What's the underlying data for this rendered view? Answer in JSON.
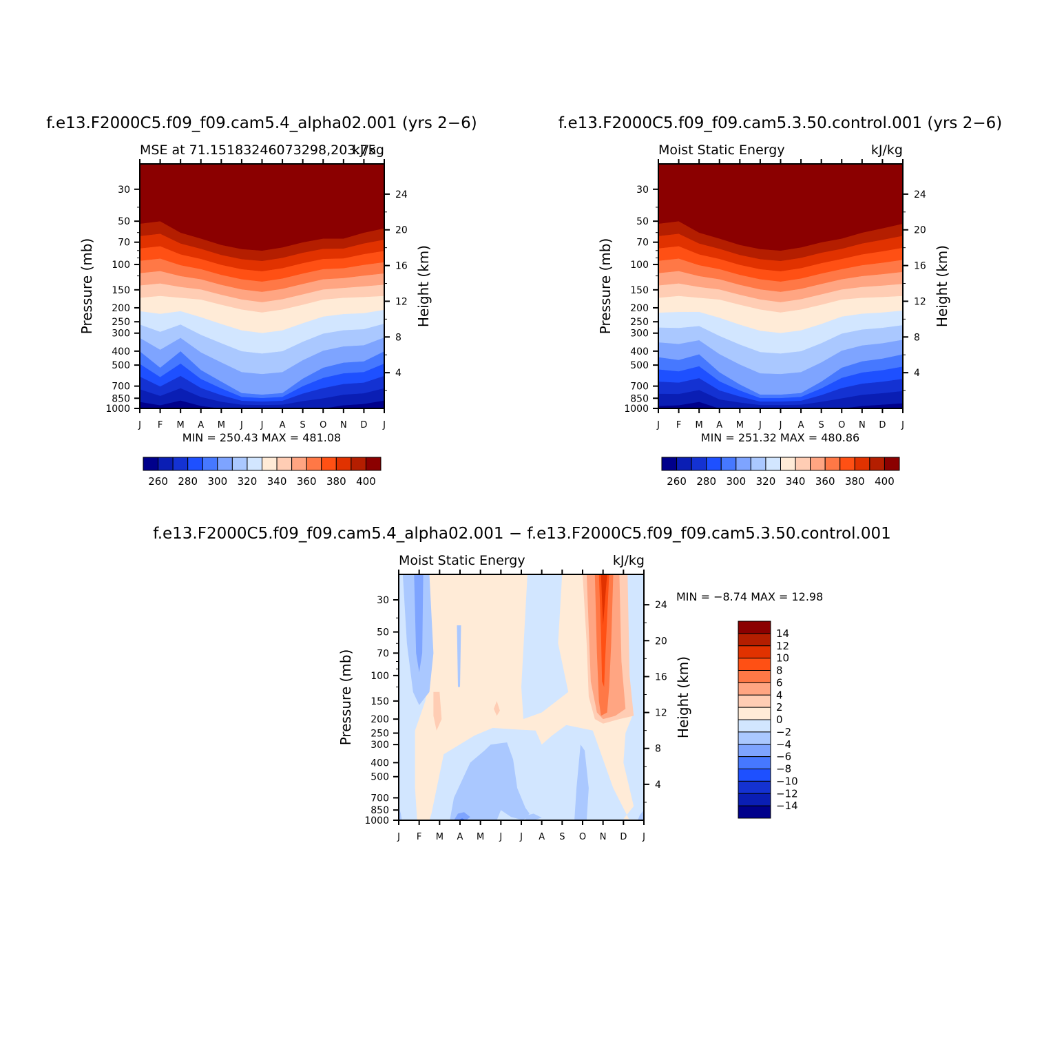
{
  "months": [
    "J",
    "F",
    "M",
    "A",
    "M",
    "J",
    "J",
    "A",
    "S",
    "O",
    "N",
    "D",
    "J"
  ],
  "pressure_ticks": [
    "30",
    "50",
    "70",
    "100",
    "150",
    "200",
    "250",
    "300",
    "400",
    "500",
    "700",
    "850",
    "1000"
  ],
  "height_ticks": [
    "24",
    "20",
    "16",
    "12",
    "8",
    "4"
  ],
  "y_label_left": "Pressure (mb)",
  "y_label_right": "Height (km)",
  "panel1": {
    "title": "f.e13.F2000C5.f09_f09.cam5.4_alpha02.001 (yrs 2−6)",
    "subtitle_left": "MSE at 71.15183246073298,203.75",
    "subtitle_right": "kJ/kg",
    "minmax": "MIN = 250.43  MAX = 481.08"
  },
  "panel2": {
    "title": "f.e13.F2000C5.f09_f09.cam5.3.50.control.001 (yrs 2−6)",
    "subtitle_left": "Moist Static Energy",
    "subtitle_right": "kJ/kg",
    "minmax": "MIN = 251.32  MAX = 480.86"
  },
  "panel3": {
    "title": "f.e13.F2000C5.f09_f09.cam5.4_alpha02.001 − f.e13.F2000C5.f09_f09.cam5.3.50.control.001",
    "subtitle_left": "Moist Static Energy",
    "subtitle_right": "kJ/kg",
    "minmax": "MIN =   −8.74  MAX =    12.98"
  },
  "colorbar_main": {
    "labels": [
      "260",
      "280",
      "300",
      "320",
      "340",
      "360",
      "380",
      "400"
    ],
    "colors": [
      "#00008b",
      "#0a1eb4",
      "#1432d2",
      "#1e50ff",
      "#4678ff",
      "#7ea4ff",
      "#aac8ff",
      "#d2e6ff",
      "#ffebd7",
      "#ffcdb4",
      "#ffa582",
      "#ff7846",
      "#ff5014",
      "#e13200",
      "#b41e00",
      "#8b0000"
    ]
  },
  "colorbar_diff": {
    "labels": [
      "14",
      "12",
      "10",
      "8",
      "6",
      "4",
      "2",
      "0",
      "−2",
      "−4",
      "−6",
      "−8",
      "−10",
      "−12",
      "−14"
    ],
    "colors_top_to_bottom": [
      "#8b0000",
      "#b41e00",
      "#e13200",
      "#ff5014",
      "#ff7846",
      "#ffa582",
      "#ffcdb4",
      "#ffebd7",
      "#d2e6ff",
      "#aac8ff",
      "#7ea4ff",
      "#4678ff",
      "#1e50ff",
      "#1432d2",
      "#0a1eb4",
      "#00008b"
    ]
  },
  "chart_data": [
    {
      "type": "heatmap",
      "title": "f.e13.F2000C5.f09_f09.cam5.4_alpha02.001 (yrs 2−6)",
      "subtitle": "MSE at 71.15183246073298,203.75",
      "units": "kJ/kg",
      "x": [
        "J",
        "F",
        "M",
        "A",
        "M",
        "J",
        "J",
        "A",
        "S",
        "O",
        "N",
        "D",
        "J"
      ],
      "y_pressure_mb": [
        1000,
        850,
        700,
        500,
        400,
        300,
        250,
        200,
        150,
        100,
        70,
        50,
        30
      ],
      "min": 250.43,
      "max": 481.08,
      "contour_levels": [
        255,
        260,
        265,
        270,
        275,
        280,
        285,
        290,
        295,
        300,
        305,
        310,
        315,
        320,
        325,
        330,
        335,
        340,
        345,
        350,
        355,
        360,
        365,
        370,
        375,
        380,
        385,
        390,
        395,
        400
      ],
      "approx_pressure_of_levels_by_month": {
        "260": [
          900,
          950,
          880,
          960,
          1000,
          1000,
          1000,
          1000,
          1000,
          1000,
          950,
          930,
          880
        ],
        "300": [
          400,
          520,
          400,
          540,
          650,
          780,
          800,
          780,
          620,
          520,
          480,
          470,
          400
        ],
        "340": [
          170,
          165,
          170,
          175,
          190,
          205,
          215,
          205,
          190,
          175,
          170,
          168,
          165
        ],
        "400": [
          52,
          50,
          60,
          66,
          73,
          78,
          80,
          76,
          70,
          66,
          66,
          60,
          56
        ]
      }
    },
    {
      "type": "heatmap",
      "title": "f.e13.F2000C5.f09_f09.cam5.3.50.control.001 (yrs 2−6)",
      "subtitle": "Moist Static Energy",
      "units": "kJ/kg",
      "x": [
        "J",
        "F",
        "M",
        "A",
        "M",
        "J",
        "J",
        "A",
        "S",
        "O",
        "N",
        "D",
        "J"
      ],
      "y_pressure_mb": [
        1000,
        850,
        700,
        500,
        400,
        300,
        250,
        200,
        150,
        100,
        70,
        50,
        30
      ],
      "min": 251.32,
      "max": 480.86,
      "approx_pressure_of_levels_by_month": {
        "260": [
          960,
          950,
          900,
          1000,
          1000,
          1000,
          1000,
          1000,
          1000,
          1000,
          960,
          940,
          920
        ],
        "300": [
          440,
          460,
          420,
          560,
          680,
          800,
          800,
          780,
          650,
          520,
          470,
          450,
          420
        ],
        "340": [
          170,
          165,
          170,
          175,
          190,
          205,
          215,
          205,
          190,
          175,
          170,
          168,
          165
        ],
        "400": [
          52,
          50,
          60,
          66,
          73,
          78,
          80,
          76,
          70,
          66,
          60,
          56,
          52
        ]
      }
    },
    {
      "type": "heatmap",
      "title": "f.e13.F2000C5.f09_f09.cam5.4_alpha02.001 − f.e13.F2000C5.f09_f09.cam5.3.50.control.001",
      "subtitle": "Moist Static Energy",
      "units": "kJ/kg",
      "x": [
        "J",
        "F",
        "M",
        "A",
        "M",
        "J",
        "J",
        "A",
        "S",
        "O",
        "N",
        "D",
        "J"
      ],
      "y_pressure_mb": [
        1000,
        850,
        700,
        500,
        400,
        300,
        250,
        200,
        150,
        100,
        70,
        50,
        30
      ],
      "min": -8.74,
      "max": 12.98,
      "contour_levels": [
        -14,
        -12,
        -10,
        -8,
        -6,
        -4,
        -2,
        0,
        2,
        4,
        6,
        8,
        10,
        12,
        14
      ],
      "features": [
        "negative (-2 to -8) column near F from 30 to 150 mb",
        "positive (0 to 12) column near N from 30 to 200 mb with maximum around 30-70 mb",
        "negative (0 to -4) region from A to O below 250 mb",
        "weak positive (0 to 2) through M-J above 250 mb"
      ]
    }
  ]
}
